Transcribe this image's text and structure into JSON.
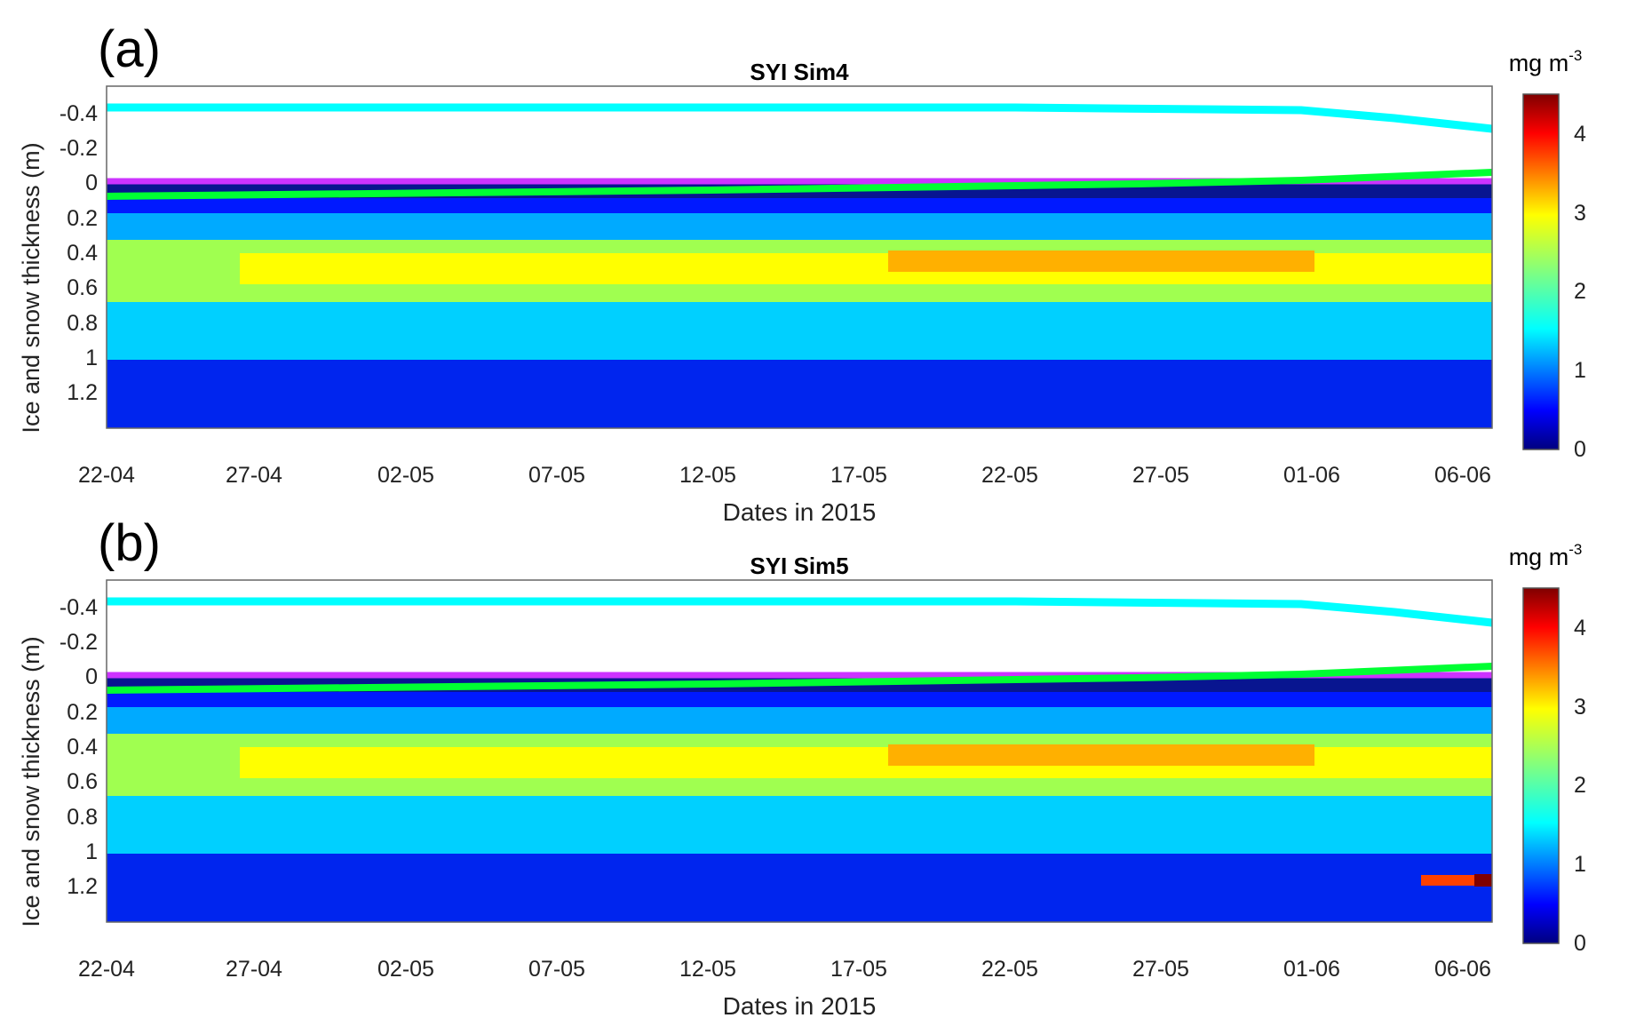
{
  "chart_data": [
    {
      "panel_label": "(a)",
      "type": "heatmap",
      "title": "SYI Sim4",
      "xlabel": "Dates in 2015",
      "ylabel": "Ice and snow thickness (m)",
      "x_ticks": [
        "22-04",
        "27-04",
        "02-05",
        "07-05",
        "12-05",
        "17-05",
        "22-05",
        "27-05",
        "01-06",
        "06-06"
      ],
      "y_ticks": [
        "-0.4",
        "-0.2",
        "0",
        "0.2",
        "0.4",
        "0.6",
        "0.8",
        "1",
        "1.2"
      ],
      "colorbar": {
        "label": "mg m",
        "superscript": "-3",
        "ticks": [
          "0",
          "1",
          "2",
          "3",
          "4"
        ],
        "range": [
          0,
          4.5
        ],
        "colormap": "jet"
      },
      "ylim": [
        -0.5,
        1.42
      ],
      "lines": [
        {
          "color": "#00ffff",
          "points": [
            [
              "22-04",
              -0.42
            ],
            [
              "22-05",
              -0.42
            ],
            [
              "01-06",
              -0.41
            ],
            [
              "04-06",
              -0.38
            ],
            [
              "07-06",
              -0.33
            ]
          ]
        },
        {
          "color": "#cc33ff",
          "points": [
            [
              "22-04",
              0.0
            ],
            [
              "07-06",
              0.0
            ]
          ]
        },
        {
          "color": "#00ff33",
          "points": [
            [
              "22-04",
              0.06
            ],
            [
              "12-05",
              0.03
            ],
            [
              "27-05",
              0.01
            ],
            [
              "01-06",
              0.0
            ],
            [
              "07-06",
              -0.06
            ]
          ]
        }
      ],
      "chl_max_band": {
        "dates": [
          "22-04",
          "27-04",
          "12-05",
          "22-05",
          "01-06",
          "07-06"
        ],
        "depth_m": [
          0.45,
          0.42,
          0.42,
          0.43,
          0.42,
          0.36
        ],
        "peak_mg_m3": [
          2.1,
          2.6,
          3.0,
          3.4,
          3.2,
          3.0
        ]
      }
    },
    {
      "panel_label": "(b)",
      "type": "heatmap",
      "title": "SYI Sim5",
      "xlabel": "Dates in 2015",
      "ylabel": "Ice and snow thickness (m)",
      "x_ticks": [
        "22-04",
        "27-04",
        "02-05",
        "07-05",
        "12-05",
        "17-05",
        "22-05",
        "27-05",
        "01-06",
        "06-06"
      ],
      "y_ticks": [
        "-0.4",
        "-0.2",
        "0",
        "0.2",
        "0.4",
        "0.6",
        "0.8",
        "1",
        "1.2"
      ],
      "colorbar": {
        "label": "mg m",
        "superscript": "-3",
        "ticks": [
          "0",
          "1",
          "2",
          "3",
          "4"
        ],
        "range": [
          0,
          4.5
        ],
        "colormap": "jet"
      },
      "ylim": [
        -0.5,
        1.42
      ],
      "lines": [
        {
          "color": "#00ffff",
          "points": [
            [
              "22-04",
              -0.42
            ],
            [
              "22-05",
              -0.42
            ],
            [
              "01-06",
              -0.41
            ],
            [
              "04-06",
              -0.38
            ],
            [
              "07-06",
              -0.33
            ]
          ]
        },
        {
          "color": "#cc33ff",
          "points": [
            [
              "22-04",
              0.0
            ],
            [
              "07-06",
              0.0
            ]
          ]
        },
        {
          "color": "#00ff33",
          "points": [
            [
              "22-04",
              0.06
            ],
            [
              "12-05",
              0.03
            ],
            [
              "27-05",
              0.01
            ],
            [
              "01-06",
              0.0
            ],
            [
              "07-06",
              -0.06
            ]
          ]
        }
      ],
      "chl_max_band": {
        "dates": [
          "22-04",
          "27-04",
          "12-05",
          "22-05",
          "01-06",
          "07-06"
        ],
        "depth_m": [
          0.45,
          0.42,
          0.42,
          0.43,
          0.42,
          0.36
        ],
        "peak_mg_m3": [
          2.1,
          2.6,
          3.0,
          3.3,
          3.1,
          2.9
        ]
      },
      "bottom_hotspot": {
        "dates": [
          "05-06",
          "07-06"
        ],
        "depth_m": 1.17,
        "peak_mg_m3": 4.5
      }
    }
  ]
}
